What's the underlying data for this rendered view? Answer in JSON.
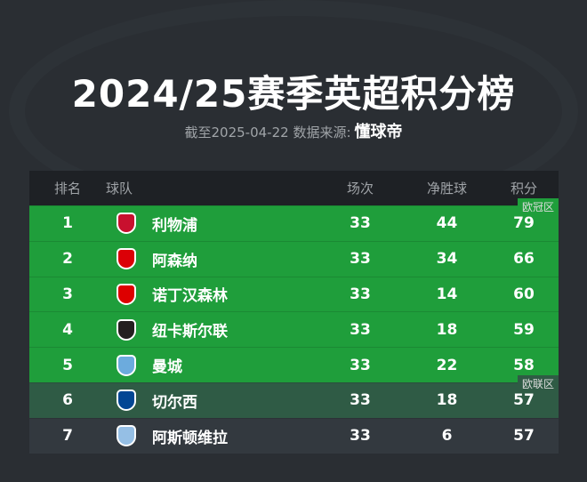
{
  "title": "2024/25赛季英超积分榜",
  "subtitle": {
    "text": "截至2025-04-22 数据来源:",
    "brand": "懂球帝"
  },
  "headers": {
    "rank": "排名",
    "team": "球队",
    "played": "场次",
    "gd": "净胜球",
    "pts": "积分"
  },
  "zones": {
    "ucl": "欧冠区",
    "uel": "欧联区"
  },
  "colors": {
    "ucl": "#1f9e3b",
    "uel": "#2f5b45",
    "other": "#33393f",
    "header": "#1e2125"
  },
  "rows": [
    {
      "rank": "1",
      "team": "利物浦",
      "played": "33",
      "gd": "44",
      "pts": "79",
      "crest": "liverpool-crest-icon",
      "crestColor": "#c8102e"
    },
    {
      "rank": "2",
      "team": "阿森纳",
      "played": "33",
      "gd": "34",
      "pts": "66",
      "crest": "arsenal-crest-icon",
      "crestColor": "#db0007"
    },
    {
      "rank": "3",
      "team": "诺丁汉森林",
      "played": "33",
      "gd": "14",
      "pts": "60",
      "crest": "nottingham-forest-crest-icon",
      "crestColor": "#dd0000"
    },
    {
      "rank": "4",
      "team": "纽卡斯尔联",
      "played": "33",
      "gd": "18",
      "pts": "59",
      "crest": "newcastle-crest-icon",
      "crestColor": "#241f20"
    },
    {
      "rank": "5",
      "team": "曼城",
      "played": "33",
      "gd": "22",
      "pts": "58",
      "crest": "man-city-crest-icon",
      "crestColor": "#6cabdd"
    },
    {
      "rank": "6",
      "team": "切尔西",
      "played": "33",
      "gd": "18",
      "pts": "57",
      "crest": "chelsea-crest-icon",
      "crestColor": "#034694"
    },
    {
      "rank": "7",
      "team": "阿斯顿维拉",
      "played": "33",
      "gd": "6",
      "pts": "57",
      "crest": "aston-villa-crest-icon",
      "crestColor": "#95bfe5"
    }
  ]
}
